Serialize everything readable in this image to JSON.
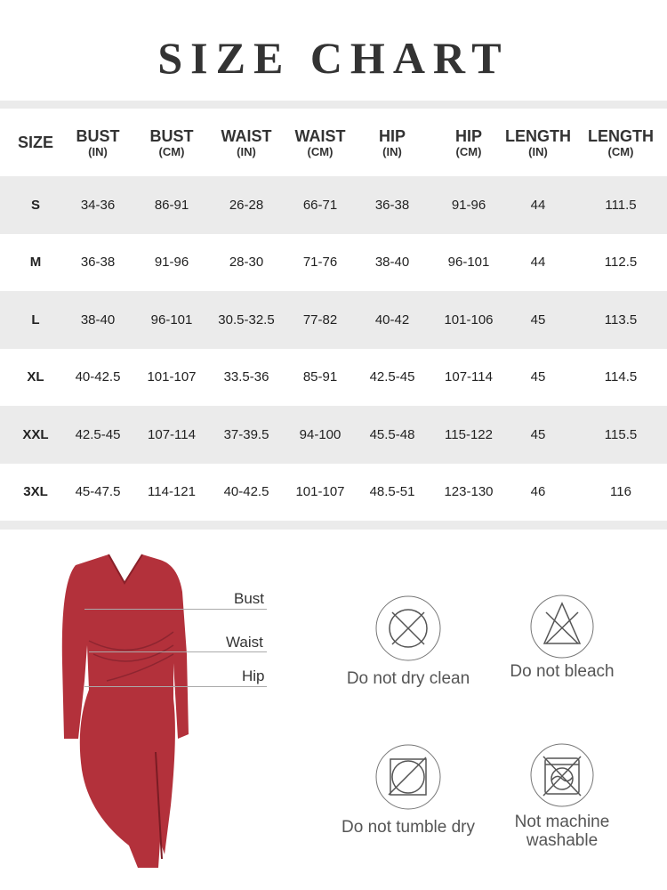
{
  "title": "SIZE CHART",
  "headers": [
    {
      "a": "SIZE",
      "b": ""
    },
    {
      "a": "BUST",
      "b": "(IN)"
    },
    {
      "a": "BUST",
      "b": "(CM)"
    },
    {
      "a": "WAIST",
      "b": "(IN)"
    },
    {
      "a": "WAIST",
      "b": "(CM)"
    },
    {
      "a": "HIP",
      "b": "(IN)"
    },
    {
      "a": "HIP",
      "b": "(CM)"
    },
    {
      "a": "LENGTH",
      "b": "(IN)"
    },
    {
      "a": "LENGTH",
      "b": "(CM)"
    }
  ],
  "rows": [
    [
      "S",
      "34-36",
      "86-91",
      "26-28",
      "66-71",
      "36-38",
      "91-96",
      "44",
      "111.5"
    ],
    [
      "M",
      "36-38",
      "91-96",
      "28-30",
      "71-76",
      "38-40",
      "96-101",
      "44",
      "112.5"
    ],
    [
      "L",
      "38-40",
      "96-101",
      "30.5-32.5",
      "77-82",
      "40-42",
      "101-106",
      "45",
      "113.5"
    ],
    [
      "XL",
      "40-42.5",
      "101-107",
      "33.5-36",
      "85-91",
      "42.5-45",
      "107-114",
      "45",
      "114.5"
    ],
    [
      "XXL",
      "42.5-45",
      "107-114",
      "37-39.5",
      "94-100",
      "45.5-48",
      "115-122",
      "45",
      "115.5"
    ],
    [
      "3XL",
      "45-47.5",
      "114-121",
      "40-42.5",
      "101-107",
      "48.5-51",
      "123-130",
      "46",
      "116"
    ]
  ],
  "measure_labels": {
    "bust": "Bust",
    "waist": "Waist",
    "hip": "Hip"
  },
  "care": [
    {
      "icon": "no-dry-clean-icon",
      "label": "Do not dry clean"
    },
    {
      "icon": "no-bleach-icon",
      "label": "Do not bleach"
    },
    {
      "icon": "no-tumble-dry-icon",
      "label": "Do not tumble dry"
    },
    {
      "icon": "no-machine-wash-icon",
      "label": "Not machine washable"
    }
  ],
  "colors": {
    "dress": "#b3313b",
    "band": "#ebebeb",
    "text": "#333333"
  }
}
